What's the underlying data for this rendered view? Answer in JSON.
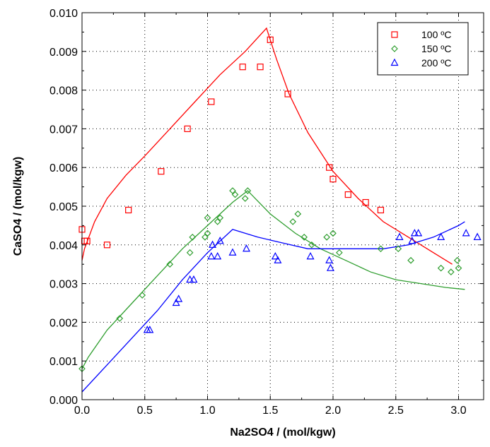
{
  "chart_data": {
    "type": "scatter",
    "xlabel": "Na2SO4 / (mol/kgw)",
    "ylabel": "CaSO4 / (mol/kgw)",
    "xlim": [
      0,
      3.2
    ],
    "ylim": [
      0,
      0.01
    ],
    "x_ticks": [
      "0.0",
      "0.5",
      "1.0",
      "1.5",
      "2.0",
      "2.5",
      "3.0"
    ],
    "y_ticks": [
      "0.000",
      "0.001",
      "0.002",
      "0.003",
      "0.004",
      "0.005",
      "0.006",
      "0.007",
      "0.008",
      "0.009",
      "0.010"
    ],
    "grid": true,
    "legend_position": "top-right",
    "series": [
      {
        "name": "100 ºC",
        "marker": "square",
        "color": "#ff0000",
        "points": [
          [
            0.0,
            0.0044
          ],
          [
            0.02,
            0.0041
          ],
          [
            0.04,
            0.0041
          ],
          [
            0.2,
            0.004
          ],
          [
            0.37,
            0.0049
          ],
          [
            0.63,
            0.0059
          ],
          [
            0.84,
            0.007
          ],
          [
            1.03,
            0.0077
          ],
          [
            1.28,
            0.0086
          ],
          [
            1.42,
            0.0086
          ],
          [
            1.5,
            0.0093
          ],
          [
            1.64,
            0.0079
          ],
          [
            1.97,
            0.006
          ],
          [
            2.0,
            0.0057
          ],
          [
            2.12,
            0.0053
          ],
          [
            2.26,
            0.0051
          ],
          [
            2.38,
            0.0049
          ]
        ],
        "fit": [
          [
            0.0,
            0.0036
          ],
          [
            0.02,
            0.0039
          ],
          [
            0.1,
            0.0046
          ],
          [
            0.2,
            0.0052
          ],
          [
            0.35,
            0.0058
          ],
          [
            0.5,
            0.0063
          ],
          [
            0.7,
            0.007
          ],
          [
            0.9,
            0.0077
          ],
          [
            1.1,
            0.0084
          ],
          [
            1.3,
            0.009
          ],
          [
            1.47,
            0.0096
          ],
          [
            1.55,
            0.0088
          ],
          [
            1.65,
            0.0079
          ],
          [
            1.8,
            0.0069
          ],
          [
            2.0,
            0.0059
          ],
          [
            2.2,
            0.0052
          ],
          [
            2.4,
            0.0046
          ],
          [
            2.6,
            0.0042
          ],
          [
            2.8,
            0.0038
          ],
          [
            2.95,
            0.0035
          ]
        ]
      },
      {
        "name": "150 ºC",
        "marker": "diamond",
        "color": "#2f9e2f",
        "points": [
          [
            0.0,
            0.0008
          ],
          [
            0.3,
            0.0021
          ],
          [
            0.48,
            0.0027
          ],
          [
            0.7,
            0.0035
          ],
          [
            0.86,
            0.0038
          ],
          [
            0.88,
            0.0042
          ],
          [
            0.98,
            0.0042
          ],
          [
            1.0,
            0.0043
          ],
          [
            1.0,
            0.0047
          ],
          [
            1.08,
            0.0046
          ],
          [
            1.1,
            0.0047
          ],
          [
            1.2,
            0.0054
          ],
          [
            1.22,
            0.0053
          ],
          [
            1.3,
            0.0052
          ],
          [
            1.32,
            0.0054
          ],
          [
            1.68,
            0.0046
          ],
          [
            1.72,
            0.0048
          ],
          [
            1.77,
            0.0042
          ],
          [
            1.83,
            0.004
          ],
          [
            1.95,
            0.0042
          ],
          [
            2.0,
            0.0043
          ],
          [
            2.05,
            0.0038
          ],
          [
            2.38,
            0.0039
          ],
          [
            2.52,
            0.0039
          ],
          [
            2.62,
            0.0036
          ],
          [
            2.86,
            0.0034
          ],
          [
            2.94,
            0.0033
          ],
          [
            2.99,
            0.0036
          ],
          [
            3.0,
            0.0034
          ]
        ],
        "fit": [
          [
            0.0,
            0.0008
          ],
          [
            0.05,
            0.0011
          ],
          [
            0.2,
            0.0018
          ],
          [
            0.4,
            0.0025
          ],
          [
            0.6,
            0.0032
          ],
          [
            0.8,
            0.0039
          ],
          [
            1.0,
            0.0045
          ],
          [
            1.2,
            0.0051
          ],
          [
            1.32,
            0.0054
          ],
          [
            1.5,
            0.0048
          ],
          [
            1.7,
            0.0043
          ],
          [
            1.9,
            0.0039
          ],
          [
            2.1,
            0.0036
          ],
          [
            2.3,
            0.0033
          ],
          [
            2.5,
            0.0031
          ],
          [
            2.7,
            0.003
          ],
          [
            2.9,
            0.0029
          ],
          [
            3.05,
            0.00285
          ]
        ]
      },
      {
        "name": "200 ºC",
        "marker": "triangle",
        "color": "#0000ff",
        "points": [
          [
            0.52,
            0.0018
          ],
          [
            0.54,
            0.0018
          ],
          [
            0.75,
            0.0025
          ],
          [
            0.77,
            0.0026
          ],
          [
            0.86,
            0.0031
          ],
          [
            0.89,
            0.0031
          ],
          [
            1.03,
            0.0037
          ],
          [
            1.04,
            0.004
          ],
          [
            1.08,
            0.0037
          ],
          [
            1.1,
            0.0041
          ],
          [
            1.2,
            0.0038
          ],
          [
            1.31,
            0.0039
          ],
          [
            1.54,
            0.0037
          ],
          [
            1.56,
            0.0036
          ],
          [
            1.82,
            0.0037
          ],
          [
            1.97,
            0.0036
          ],
          [
            1.98,
            0.0034
          ],
          [
            2.53,
            0.0042
          ],
          [
            2.63,
            0.0041
          ],
          [
            2.65,
            0.0043
          ],
          [
            2.68,
            0.0043
          ],
          [
            2.86,
            0.0042
          ],
          [
            3.06,
            0.0043
          ],
          [
            3.15,
            0.0042
          ]
        ],
        "fit": [
          [
            0.0,
            0.0002
          ],
          [
            0.2,
            0.0009
          ],
          [
            0.4,
            0.0016
          ],
          [
            0.6,
            0.0023
          ],
          [
            0.8,
            0.0031
          ],
          [
            1.0,
            0.0038
          ],
          [
            1.2,
            0.0044
          ],
          [
            1.4,
            0.0042
          ],
          [
            1.6,
            0.00405
          ],
          [
            1.8,
            0.0039
          ],
          [
            2.0,
            0.0039
          ],
          [
            2.2,
            0.0039
          ],
          [
            2.4,
            0.0039
          ],
          [
            2.6,
            0.004
          ],
          [
            2.8,
            0.0042
          ],
          [
            3.0,
            0.0045
          ],
          [
            3.05,
            0.0046
          ]
        ]
      }
    ]
  }
}
